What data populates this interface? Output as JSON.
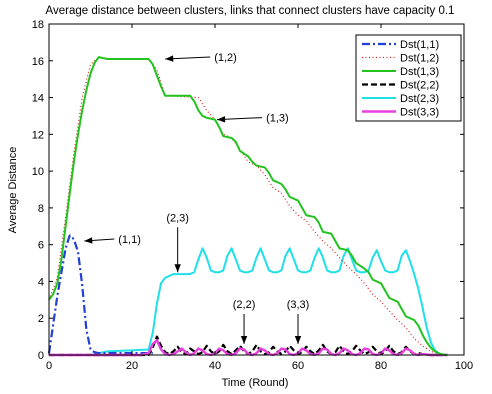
{
  "chart_data": {
    "type": "line",
    "title": "Average distance between clusters, links that connect clusters have capacity 0.1",
    "xlabel": "Time (Round)",
    "ylabel": "Average Distance",
    "xlim": [
      0,
      100
    ],
    "ylim": [
      0,
      18
    ],
    "xticks": [
      0,
      20,
      40,
      60,
      80,
      100
    ],
    "yticks": [
      0,
      2,
      4,
      6,
      8,
      10,
      12,
      14,
      16,
      18
    ],
    "grid": false,
    "legend_position": "top-right",
    "series": [
      {
        "name": "Dst(1,1)",
        "color": "#1f3fd6",
        "style": "dashdot",
        "x": [
          0,
          2,
          4,
          5,
          6,
          7,
          8,
          9,
          10,
          11,
          12,
          20,
          25
        ],
        "y": [
          0.1,
          3.2,
          5.8,
          6.5,
          6.3,
          5.6,
          3.8,
          1.4,
          0.3,
          0.15,
          0.1,
          0.1,
          0.1
        ]
      },
      {
        "name": "Dst(1,2)",
        "color": "#e02020",
        "style": "dotted",
        "x": [
          0,
          2,
          4,
          6,
          8,
          10,
          12,
          14,
          20,
          24,
          26,
          28,
          36,
          38,
          40,
          42,
          44,
          46,
          48,
          50,
          52,
          54,
          56,
          58,
          60,
          62,
          64,
          66,
          68,
          70,
          72,
          74,
          76,
          78,
          80,
          82,
          84,
          86,
          88,
          90,
          92,
          94,
          95,
          96
        ],
        "y": [
          3.0,
          4.2,
          7.5,
          11.0,
          14.0,
          15.8,
          16.2,
          16.1,
          16.1,
          16.1,
          15.5,
          14.1,
          14.0,
          13.3,
          12.8,
          12.0,
          11.8,
          11.2,
          10.5,
          10.3,
          9.8,
          9.1,
          8.8,
          8.1,
          7.6,
          7.3,
          6.7,
          6.2,
          5.8,
          5.3,
          4.8,
          4.4,
          3.9,
          3.3,
          2.9,
          2.4,
          1.9,
          1.5,
          0.9,
          0.5,
          0.2,
          0.05,
          0.0,
          0.0
        ]
      },
      {
        "name": "Dst(1,3)",
        "color": "#22c31e",
        "style": "solid",
        "x": [
          0,
          1,
          2,
          3,
          4,
          5,
          6,
          7,
          8,
          9,
          10,
          11,
          12,
          14,
          16,
          18,
          20,
          22,
          24,
          25,
          26,
          27,
          28,
          30,
          32,
          34,
          35,
          36,
          37,
          38,
          40,
          41,
          42,
          44,
          45,
          46,
          48,
          49,
          50,
          52,
          53,
          54,
          56,
          57,
          58,
          60,
          61,
          62,
          64,
          65,
          66,
          68,
          69,
          70,
          72,
          73,
          74,
          76,
          77,
          78,
          80,
          81,
          82,
          84,
          85,
          86,
          88,
          89,
          90,
          91,
          92,
          93,
          94,
          95,
          96
        ],
        "y": [
          3.0,
          3.3,
          3.9,
          5.2,
          7.0,
          8.8,
          10.5,
          12.0,
          13.3,
          14.4,
          15.3,
          15.9,
          16.2,
          16.1,
          16.1,
          16.1,
          16.1,
          16.1,
          16.1,
          15.8,
          15.2,
          14.6,
          14.1,
          14.1,
          14.1,
          14.1,
          13.8,
          13.3,
          13.0,
          12.9,
          12.8,
          12.4,
          11.9,
          11.8,
          11.6,
          11.1,
          10.8,
          10.5,
          10.3,
          10.2,
          9.9,
          9.5,
          9.3,
          9.0,
          8.6,
          8.4,
          8.0,
          7.6,
          7.5,
          7.2,
          6.7,
          6.6,
          6.2,
          5.8,
          5.7,
          5.4,
          5.0,
          4.7,
          4.5,
          4.1,
          3.9,
          3.5,
          3.1,
          2.9,
          2.5,
          2.1,
          1.9,
          1.6,
          1.1,
          0.7,
          0.4,
          0.2,
          0.08,
          0.02,
          0.0
        ]
      },
      {
        "name": "Dst(2,2)",
        "color": "#000000",
        "style": "dashed",
        "x": [
          0,
          24,
          25,
          26,
          27,
          28,
          29,
          30,
          31,
          32,
          33,
          34,
          35,
          36,
          37,
          38,
          39,
          40,
          41,
          42,
          43,
          44,
          45,
          46,
          47,
          48,
          49,
          50,
          51,
          52,
          53,
          54,
          55,
          56,
          57,
          58,
          59,
          60,
          61,
          62,
          63,
          64,
          65,
          66,
          67,
          68,
          69,
          70,
          71,
          72,
          73,
          74,
          75,
          76,
          77,
          78,
          79,
          80,
          81,
          82,
          83,
          84,
          85,
          86,
          87,
          88,
          89,
          90,
          92,
          96
        ],
        "y": [
          0.0,
          0.0,
          0.4,
          1.0,
          0.5,
          0.15,
          0.05,
          0.2,
          0.45,
          0.15,
          0.05,
          0.35,
          0.2,
          0.05,
          0.15,
          0.5,
          0.2,
          0.05,
          0.2,
          0.55,
          0.2,
          0.05,
          0.25,
          0.5,
          0.2,
          0.05,
          0.2,
          0.55,
          0.2,
          0.05,
          0.15,
          0.45,
          0.2,
          0.05,
          0.2,
          0.5,
          0.25,
          0.05,
          0.15,
          0.45,
          0.2,
          0.05,
          0.25,
          0.55,
          0.2,
          0.05,
          0.15,
          0.5,
          0.2,
          0.05,
          0.2,
          0.5,
          0.25,
          0.05,
          0.15,
          0.45,
          0.2,
          0.05,
          0.2,
          0.5,
          0.2,
          0.05,
          0.15,
          0.45,
          0.2,
          0.05,
          0.1,
          0.05,
          0.0,
          0.0
        ]
      },
      {
        "name": "Dst(2,3)",
        "color": "#1ee0e6",
        "style": "solid",
        "x": [
          0,
          10,
          14,
          20,
          24,
          25,
          26,
          27,
          28,
          29,
          30,
          32,
          34,
          35,
          36,
          37,
          38,
          39,
          40,
          41,
          42,
          43,
          44,
          45,
          46,
          47,
          48,
          49,
          50,
          51,
          52,
          53,
          54,
          55,
          56,
          57,
          58,
          59,
          60,
          61,
          62,
          63,
          64,
          65,
          66,
          67,
          68,
          69,
          70,
          71,
          72,
          73,
          74,
          75,
          76,
          77,
          78,
          79,
          80,
          81,
          82,
          83,
          84,
          85,
          86,
          87,
          88,
          89,
          90,
          91,
          92,
          93,
          94,
          95,
          96
        ],
        "y": [
          0.0,
          0.0,
          0.2,
          0.25,
          0.3,
          1.2,
          2.8,
          3.9,
          4.2,
          4.3,
          4.4,
          4.4,
          4.4,
          4.5,
          5.2,
          5.8,
          5.3,
          4.6,
          4.5,
          4.5,
          4.6,
          5.4,
          5.8,
          5.2,
          4.6,
          4.5,
          4.5,
          4.6,
          5.3,
          5.8,
          5.2,
          4.6,
          4.5,
          4.5,
          4.6,
          5.4,
          5.8,
          5.2,
          4.6,
          4.5,
          4.5,
          4.6,
          5.3,
          5.8,
          5.3,
          4.6,
          4.5,
          4.5,
          4.6,
          5.4,
          5.8,
          5.2,
          4.6,
          4.5,
          4.5,
          4.6,
          5.3,
          5.7,
          5.1,
          4.6,
          4.5,
          4.5,
          4.6,
          5.4,
          5.7,
          5.1,
          4.4,
          3.6,
          2.6,
          1.5,
          0.7,
          0.25,
          0.08,
          0.02,
          0.0
        ]
      },
      {
        "name": "Dst(3,3)",
        "color": "#e840e0",
        "style": "solid",
        "x": [
          0,
          22,
          24,
          25,
          26,
          27,
          28,
          29,
          30,
          31,
          32,
          33,
          34,
          35,
          36,
          37,
          38,
          39,
          40,
          41,
          42,
          43,
          44,
          45,
          46,
          47,
          48,
          49,
          50,
          51,
          52,
          53,
          54,
          55,
          56,
          57,
          58,
          59,
          60,
          61,
          62,
          63,
          64,
          65,
          66,
          67,
          68,
          69,
          70,
          71,
          72,
          73,
          74,
          75,
          76,
          77,
          78,
          79,
          80,
          81,
          82,
          83,
          84,
          85,
          86,
          87,
          88,
          89,
          90,
          92,
          96
        ],
        "y": [
          0.0,
          0.0,
          0.1,
          0.6,
          0.8,
          0.3,
          0.05,
          0.0,
          0.05,
          0.2,
          0.35,
          0.15,
          0.0,
          0.1,
          0.35,
          0.25,
          0.05,
          0.0,
          0.1,
          0.35,
          0.25,
          0.05,
          0.0,
          0.1,
          0.35,
          0.3,
          0.05,
          0.0,
          0.1,
          0.35,
          0.25,
          0.05,
          0.0,
          0.1,
          0.35,
          0.3,
          0.05,
          0.0,
          0.1,
          0.35,
          0.25,
          0.05,
          0.0,
          0.1,
          0.35,
          0.3,
          0.05,
          0.0,
          0.1,
          0.35,
          0.25,
          0.05,
          0.0,
          0.1,
          0.35,
          0.3,
          0.05,
          0.0,
          0.1,
          0.35,
          0.25,
          0.05,
          0.0,
          0.1,
          0.35,
          0.25,
          0.05,
          0.0,
          0.05,
          0.0,
          0.0
        ]
      }
    ],
    "annotations": [
      {
        "text": "(1,1)",
        "x": 8.5,
        "y": 6.2
      },
      {
        "text": "(1,2)",
        "x": 28,
        "y": 16.1
      },
      {
        "text": "(1,3)",
        "x": 40.5,
        "y": 12.8
      },
      {
        "text": "(2,3)",
        "x": 31,
        "y": 4.5
      },
      {
        "text": "(2,2)",
        "x": 47,
        "y": 0.6
      },
      {
        "text": "(3,3)",
        "x": 60,
        "y": 0.6
      }
    ]
  }
}
